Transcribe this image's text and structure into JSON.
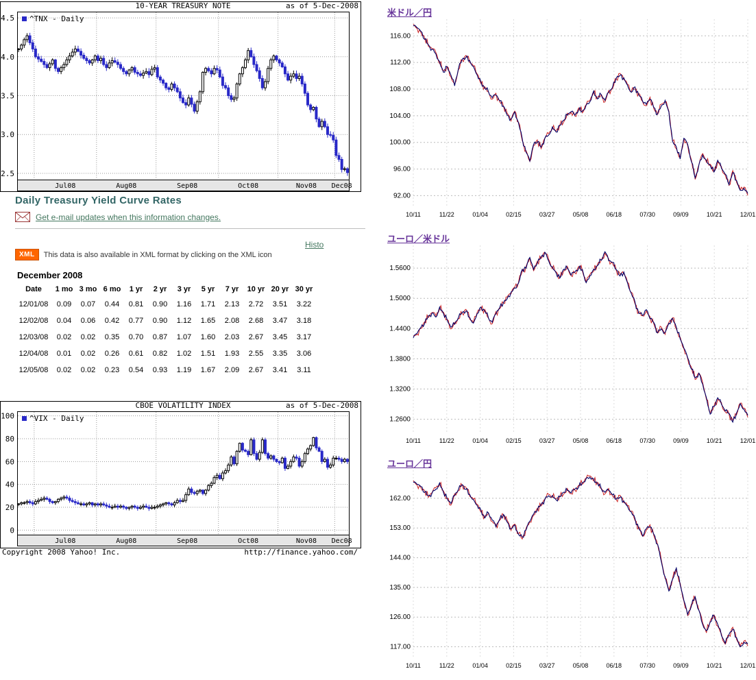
{
  "colors": {
    "heading": "#336666",
    "link": "#44775f",
    "fx_title_link": "#663399",
    "xml_badge_bg": "#ff6600",
    "candle_down": "#2929c8",
    "candle_up_fill": "#ffffff",
    "candle_up_stroke": "#000000",
    "fx_line_primary": "#000066",
    "fx_line_secondary": "#cc2222",
    "axis_strip": "#e6e6e6"
  },
  "yahoo": {
    "copyright": "Copyright 2008 Yahoo! Inc.",
    "url": "http://finance.yahoo.com/"
  },
  "treasury": {
    "heading": "Daily Treasury Yield Curve Rates",
    "email_link": "Get e-mail updates when this information changes.",
    "histo_link": "Histo",
    "xml_badge": "XML",
    "xml_text": "This data is also available in XML format by clicking on the XML icon",
    "month_label": "December 2008",
    "table": {
      "headers": [
        "Date",
        "1 mo",
        "3 mo",
        "6 mo",
        "1 yr",
        "2 yr",
        "3 yr",
        "5 yr",
        "7 yr",
        "10 yr",
        "20 yr",
        "30 yr"
      ],
      "rows": [
        [
          "12/01/08",
          "0.09",
          "0.07",
          "0.44",
          "0.81",
          "0.90",
          "1.16",
          "1.71",
          "2.13",
          "2.72",
          "3.51",
          "3.22"
        ],
        [
          "12/02/08",
          "0.04",
          "0.06",
          "0.42",
          "0.77",
          "0.90",
          "1.12",
          "1.65",
          "2.08",
          "2.68",
          "3.47",
          "3.18"
        ],
        [
          "12/03/08",
          "0.02",
          "0.02",
          "0.35",
          "0.70",
          "0.87",
          "1.07",
          "1.60",
          "2.03",
          "2.67",
          "3.45",
          "3.17"
        ],
        [
          "12/04/08",
          "0.01",
          "0.02",
          "0.26",
          "0.61",
          "0.82",
          "1.02",
          "1.51",
          "1.93",
          "2.55",
          "3.35",
          "3.06"
        ],
        [
          "12/05/08",
          "0.02",
          "0.02",
          "0.23",
          "0.54",
          "0.93",
          "1.19",
          "1.67",
          "2.09",
          "2.67",
          "3.41",
          "3.11"
        ]
      ]
    }
  },
  "chart_data": [
    {
      "id": "tnx",
      "type": "candlestick",
      "title": "10-YEAR TREASURY NOTE",
      "as_of": "as of  5-Dec-2008",
      "legend": "^TNX - Daily",
      "ylim": [
        2.42,
        4.58
      ],
      "y_ticks": [
        "4.5",
        "4.0",
        "3.5",
        "3.0",
        "2.5"
      ],
      "x_ticks": [
        "Jul08",
        "Aug08",
        "Sep08",
        "Oct08",
        "Nov08",
        "Dec08"
      ],
      "month_starts": [
        6,
        28,
        49,
        71,
        92,
        112
      ],
      "values": [
        4.1,
        4.15,
        4.22,
        4.27,
        4.18,
        4.1,
        4.0,
        3.97,
        3.94,
        3.9,
        3.86,
        3.91,
        3.96,
        3.85,
        3.81,
        3.86,
        3.9,
        3.96,
        4.01,
        4.06,
        4.1,
        4.07,
        4.02,
        3.98,
        3.95,
        3.92,
        3.96,
        4.01,
        3.95,
        3.98,
        3.9,
        3.86,
        3.92,
        3.95,
        3.93,
        3.9,
        3.85,
        3.81,
        3.78,
        3.83,
        3.86,
        3.8,
        3.78,
        3.76,
        3.79,
        3.81,
        3.77,
        3.84,
        3.86,
        3.74,
        3.7,
        3.66,
        3.6,
        3.58,
        3.65,
        3.6,
        3.55,
        3.47,
        3.41,
        3.38,
        3.47,
        3.39,
        3.3,
        3.42,
        3.55,
        3.8,
        3.85,
        3.82,
        3.78,
        3.85,
        3.83,
        3.74,
        3.63,
        3.6,
        3.5,
        3.45,
        3.47,
        3.65,
        3.78,
        3.86,
        3.96,
        4.08,
        4.0,
        3.9,
        3.82,
        3.72,
        3.6,
        3.68,
        3.85,
        3.96,
        4.01,
        3.96,
        3.92,
        3.87,
        3.78,
        3.7,
        3.75,
        3.78,
        3.72,
        3.75,
        3.65,
        3.53,
        3.38,
        3.32,
        3.35,
        3.2,
        3.1,
        3.17,
        3.1,
        3.0,
        2.99,
        2.93,
        2.73,
        2.68,
        2.55,
        2.56,
        2.51
      ]
    },
    {
      "id": "vix",
      "type": "candlestick",
      "title": "CBOE VOLATILITY INDEX",
      "as_of": "as of  5-Dec-2008",
      "legend": "^VIX - Daily",
      "ylim": [
        -4,
        104
      ],
      "y_ticks": [
        "100",
        "80",
        "60",
        "40",
        "20",
        "0"
      ],
      "x_ticks": [
        "Jul08",
        "Aug08",
        "Sep08",
        "Oct08",
        "Nov08",
        "Dec08"
      ],
      "month_starts": [
        6,
        28,
        49,
        71,
        92,
        112
      ],
      "values": [
        23,
        24,
        24,
        25,
        24,
        23,
        25,
        26,
        27,
        28,
        27,
        25,
        24,
        25,
        27,
        28,
        29,
        28,
        26,
        25,
        24,
        23,
        23,
        22,
        23,
        24,
        22,
        23,
        22,
        23,
        22,
        21,
        20,
        20,
        21,
        20,
        21,
        20,
        19,
        20,
        21,
        20,
        19,
        20,
        21,
        20,
        19,
        20,
        20,
        21,
        22,
        23,
        24,
        23,
        22,
        24,
        26,
        25,
        26,
        31,
        36,
        33,
        32,
        34,
        35,
        32,
        35,
        39,
        41,
        46,
        48,
        45,
        50,
        52,
        57,
        64,
        58,
        69,
        76,
        70,
        69,
        66,
        79,
        67,
        62,
        68,
        79,
        67,
        63,
        65,
        62,
        60,
        59,
        63,
        54,
        56,
        60,
        64,
        63,
        56,
        60,
        67,
        71,
        74,
        81,
        72,
        69,
        60,
        62,
        55,
        57,
        63,
        63,
        62,
        60,
        62,
        60
      ]
    },
    {
      "id": "usdjpy",
      "type": "line",
      "title": "米ドル／円",
      "ylim": [
        90.5,
        118.5
      ],
      "y_ticks": [
        "116.00",
        "112.00",
        "108.00",
        "104.00",
        "100.00",
        "96.00",
        "92.00"
      ],
      "x_ticks": [
        "10/11",
        "11/22",
        "01/04",
        "02/15",
        "03/27",
        "05/08",
        "06/18",
        "07/30",
        "09/09",
        "10/21",
        "12/01"
      ],
      "values": [
        117.6,
        117.2,
        116.6,
        115.6,
        114.6,
        114.0,
        113.4,
        112.0,
        110.6,
        111.4,
        110.0,
        108.6,
        111.0,
        112.4,
        112.9,
        112.2,
        111.4,
        110.2,
        109.0,
        108.2,
        107.6,
        106.6,
        107.2,
        106.2,
        105.4,
        104.2,
        103.4,
        104.6,
        103.0,
        100.4,
        98.6,
        97.2,
        99.6,
        100.2,
        99.2,
        100.6,
        101.2,
        102.2,
        101.6,
        102.6,
        103.2,
        104.2,
        104.6,
        104.0,
        105.0,
        104.6,
        105.6,
        106.2,
        107.6,
        106.6,
        107.2,
        106.2,
        107.6,
        108.2,
        109.6,
        110.2,
        109.6,
        108.6,
        107.6,
        108.2,
        107.2,
        106.2,
        105.6,
        106.6,
        105.2,
        104.2,
        105.6,
        106.2,
        104.6,
        100.2,
        99.2,
        97.6,
        100.6,
        99.6,
        97.2,
        94.6,
        96.6,
        98.2,
        97.2,
        96.6,
        95.6,
        97.2,
        96.2,
        95.2,
        93.6,
        95.6,
        94.2,
        92.8,
        93.2,
        92.2
      ]
    },
    {
      "id": "eurusd",
      "type": "line",
      "title": "ユーロ／米ドル",
      "ylim": [
        1.235,
        1.605
      ],
      "y_ticks": [
        "1.5600",
        "1.5000",
        "1.4400",
        "1.3800",
        "1.3200",
        "1.2600"
      ],
      "x_ticks": [
        "10/11",
        "11/22",
        "01/04",
        "02/15",
        "03/27",
        "05/08",
        "06/18",
        "07/30",
        "09/09",
        "10/21",
        "12/01"
      ],
      "values": [
        1.423,
        1.43,
        1.441,
        1.451,
        1.464,
        1.471,
        1.464,
        1.481,
        1.471,
        1.458,
        1.441,
        1.45,
        1.461,
        1.471,
        1.476,
        1.461,
        1.451,
        1.471,
        1.481,
        1.476,
        1.461,
        1.451,
        1.471,
        1.481,
        1.491,
        1.501,
        1.511,
        1.521,
        1.531,
        1.556,
        1.561,
        1.581,
        1.556,
        1.571,
        1.581,
        1.591,
        1.576,
        1.561,
        1.551,
        1.541,
        1.556,
        1.561,
        1.546,
        1.551,
        1.561,
        1.556,
        1.531,
        1.546,
        1.556,
        1.566,
        1.576,
        1.591,
        1.576,
        1.571,
        1.556,
        1.546,
        1.551,
        1.531,
        1.511,
        1.491,
        1.471,
        1.466,
        1.476,
        1.461,
        1.451,
        1.431,
        1.441,
        1.431,
        1.451,
        1.461,
        1.441,
        1.421,
        1.401,
        1.381,
        1.361,
        1.341,
        1.351,
        1.331,
        1.301,
        1.271,
        1.286,
        1.301,
        1.291,
        1.276,
        1.271,
        1.256,
        1.271,
        1.291,
        1.281,
        1.266
      ]
    },
    {
      "id": "eurjpy",
      "type": "line",
      "title": "ユーロ／円",
      "ylim": [
        114,
        170.5
      ],
      "y_ticks": [
        "162.00",
        "153.00",
        "144.00",
        "135.00",
        "126.00",
        "117.00"
      ],
      "x_ticks": [
        "10/11",
        "11/22",
        "01/04",
        "02/15",
        "03/27",
        "05/08",
        "06/18",
        "07/30",
        "09/09",
        "10/21",
        "12/01"
      ],
      "values": [
        167.0,
        166.2,
        165.4,
        164.0,
        162.6,
        163.6,
        165.0,
        166.4,
        164.0,
        162.0,
        160.2,
        163.0,
        164.6,
        166.0,
        165.0,
        163.0,
        161.6,
        160.0,
        158.2,
        156.2,
        157.6,
        155.2,
        153.6,
        155.6,
        157.0,
        155.0,
        152.6,
        154.0,
        151.2,
        150.0,
        152.6,
        155.0,
        157.0,
        158.6,
        160.0,
        161.6,
        163.0,
        162.6,
        161.6,
        162.6,
        163.6,
        164.6,
        163.6,
        164.6,
        165.6,
        166.6,
        168.0,
        168.6,
        167.6,
        166.6,
        165.0,
        163.6,
        164.6,
        163.0,
        161.6,
        162.6,
        161.0,
        159.6,
        158.0,
        155.6,
        153.0,
        150.6,
        152.6,
        153.6,
        151.0,
        148.0,
        143.0,
        138.0,
        134.0,
        137.6,
        140.6,
        136.0,
        131.0,
        126.6,
        129.6,
        132.0,
        128.0,
        124.0,
        121.6,
        124.6,
        126.6,
        123.6,
        120.6,
        118.0,
        120.6,
        122.6,
        119.6,
        117.0,
        118.6,
        117.6
      ]
    }
  ]
}
